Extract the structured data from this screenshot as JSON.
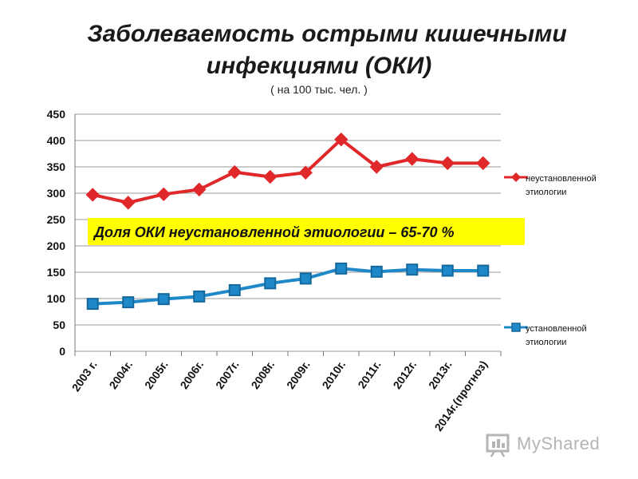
{
  "header": {
    "title_line1": "Заболеваемость острыми кишечными",
    "title_line2": "инфекциями (ОКИ)",
    "subtitle": "( на 100 тыс. чел. )"
  },
  "chart_data": {
    "type": "line",
    "title": "Заболеваемость острыми кишечными инфекциями (ОКИ)",
    "subtitle": "( на 100 тыс. чел. )",
    "xlabel": "",
    "ylabel": "",
    "ylim": [
      0,
      450
    ],
    "yticks": [
      0,
      50,
      100,
      150,
      200,
      250,
      300,
      350,
      400,
      450
    ],
    "grid": true,
    "legend_position": "right",
    "categories": [
      "2003 г.",
      "2004г.",
      "2005г.",
      "2006г.",
      "2007г.",
      "2008г.",
      "2009г.",
      "2010г.",
      "2011г.",
      "2012г.",
      "2013г.",
      "2014г.(прогноз)"
    ],
    "series": [
      {
        "name": "неустановленной этиологии",
        "color": "#e0282b",
        "marker": "diamond",
        "values": [
          297,
          282,
          298,
          307,
          340,
          331,
          339,
          402,
          350,
          365,
          357,
          357
        ]
      },
      {
        "name": "установленной этиологии",
        "color": "#1e88c8",
        "marker": "square",
        "values": [
          90,
          93,
          99,
          104,
          116,
          129,
          138,
          157,
          151,
          155,
          153,
          153
        ]
      }
    ],
    "annotation": {
      "text": "Доля  ОКИ неустановленной этиологии – 65-70 %",
      "background": "#ffff00"
    }
  },
  "watermark": {
    "text": "MyShared",
    "icon": "myshared-logo-icon"
  }
}
